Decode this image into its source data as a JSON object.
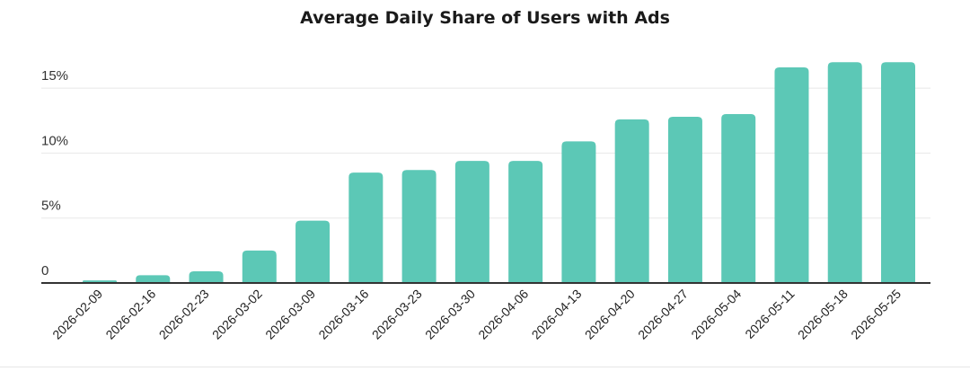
{
  "colors": {
    "bar": "#5cc8b6",
    "grid": "#e8e8e8",
    "axis": "#333333"
  },
  "chart_data": {
    "type": "bar",
    "title": "Average Daily Share of Users with Ads",
    "xlabel": "",
    "ylabel": "",
    "categories": [
      "2026-02-09",
      "2026-02-16",
      "2026-02-23",
      "2026-03-02",
      "2026-03-09",
      "2026-03-16",
      "2026-03-23",
      "2026-03-30",
      "2026-04-06",
      "2026-04-13",
      "2026-04-20",
      "2026-04-27",
      "2026-05-04",
      "2026-05-11",
      "2026-05-18",
      "2026-05-25"
    ],
    "values": [
      0.2,
      0.6,
      0.9,
      2.5,
      4.8,
      8.5,
      8.7,
      9.4,
      9.4,
      10.9,
      12.6,
      12.8,
      13.0,
      16.6,
      17.0,
      17.0
    ],
    "unit": "%",
    "ylim": [
      0,
      17.5
    ],
    "yticks": [
      {
        "value": 0,
        "label": "0"
      },
      {
        "value": 5,
        "label": "5%"
      },
      {
        "value": 10,
        "label": "10%"
      },
      {
        "value": 15,
        "label": "15%"
      }
    ],
    "grid": true,
    "legend": "none"
  }
}
